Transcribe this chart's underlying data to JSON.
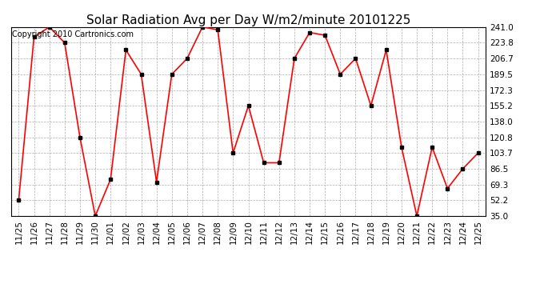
{
  "title": "Solar Radiation Avg per Day W/m2/minute 20101225",
  "copyright": "Copyright 2010 Cartronics.com",
  "labels": [
    "11/25",
    "11/26",
    "11/27",
    "11/28",
    "11/29",
    "11/30",
    "12/01",
    "12/02",
    "12/03",
    "12/04",
    "12/05",
    "12/06",
    "12/07",
    "12/08",
    "12/09",
    "12/10",
    "12/11",
    "12/12",
    "12/13",
    "12/14",
    "12/15",
    "12/16",
    "12/17",
    "12/18",
    "12/19",
    "12/20",
    "12/21",
    "12/22",
    "12/23",
    "12/24",
    "12/25"
  ],
  "values": [
    52.2,
    230.0,
    241.0,
    223.8,
    120.8,
    35.0,
    75.0,
    216.0,
    189.5,
    72.0,
    189.5,
    206.7,
    241.0,
    238.0,
    103.7,
    155.2,
    93.0,
    93.0,
    206.7,
    235.0,
    232.0,
    189.5,
    206.7,
    155.2,
    216.0,
    110.0,
    35.0,
    110.0,
    65.0,
    86.5,
    103.7
  ],
  "line_color": "#ff0000",
  "marker_color": "#000000",
  "bg_color": "#ffffff",
  "grid_color": "#999999",
  "yticks": [
    35.0,
    52.2,
    69.3,
    86.5,
    103.7,
    120.8,
    138.0,
    155.2,
    172.3,
    189.5,
    206.7,
    223.8,
    241.0
  ],
  "ymin": 35.0,
  "ymax": 241.0,
  "title_fontsize": 11,
  "tick_fontsize": 7.5,
  "copyright_fontsize": 7
}
